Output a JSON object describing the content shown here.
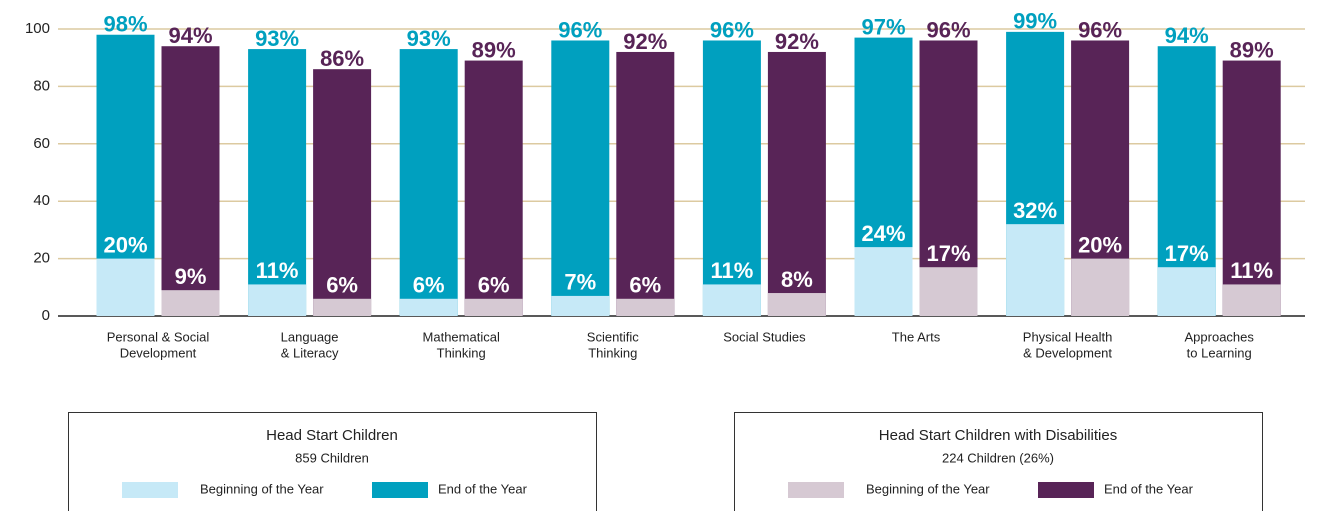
{
  "chart_data": {
    "type": "bar",
    "categories": [
      [
        "Personal & Social",
        "Development"
      ],
      [
        "Language",
        "& Literacy"
      ],
      [
        "Mathematical",
        "Thinking"
      ],
      [
        "Scientific",
        "Thinking"
      ],
      [
        "Social Studies"
      ],
      [
        "The Arts"
      ],
      [
        "Physical Health",
        "& Development"
      ],
      [
        "Approaches",
        "to Learning"
      ]
    ],
    "ylim": [
      0,
      100
    ],
    "yticks": [
      0,
      20,
      40,
      60,
      80,
      100
    ],
    "grid": true,
    "grid_color": "#dccaa0",
    "groups": [
      {
        "title": "Head Start Children",
        "subtitle": "859 Children",
        "series": [
          {
            "name": "Beginning of the Year",
            "color": "#c6e9f7",
            "label_color": "#ffffff",
            "values": [
              20,
              11,
              6,
              7,
              11,
              24,
              32,
              17
            ],
            "value_labels": [
              "20%",
              "11%",
              "6%",
              "7%",
              "11%",
              "24%",
              "32%",
              "17%"
            ]
          },
          {
            "name": "End of the Year",
            "color": "#00a0bf",
            "label_color": "#00a0bf",
            "values": [
              98,
              93,
              93,
              96,
              96,
              97,
              99,
              94
            ],
            "value_labels": [
              "98%",
              "93%",
              "93%",
              "96%",
              "96%",
              "97%",
              "99%",
              "94%"
            ]
          }
        ]
      },
      {
        "title": "Head Start Children with Disabilities",
        "subtitle": "224 Children (26%)",
        "series": [
          {
            "name": "Beginning of the Year",
            "color": "#d6c9d3",
            "label_color": "#ffffff",
            "values": [
              9,
              6,
              6,
              6,
              8,
              17,
              20,
              11
            ],
            "value_labels": [
              "9%",
              "6%",
              "6%",
              "6%",
              "8%",
              "17%",
              "20%",
              "11%"
            ]
          },
          {
            "name": "End of the Year",
            "color": "#582457",
            "label_color": "#582457",
            "values": [
              94,
              86,
              89,
              92,
              92,
              96,
              96,
              89
            ],
            "value_labels": [
              "94%",
              "86%",
              "89%",
              "92%",
              "92%",
              "96%",
              "96%",
              "89%"
            ]
          }
        ]
      }
    ]
  }
}
